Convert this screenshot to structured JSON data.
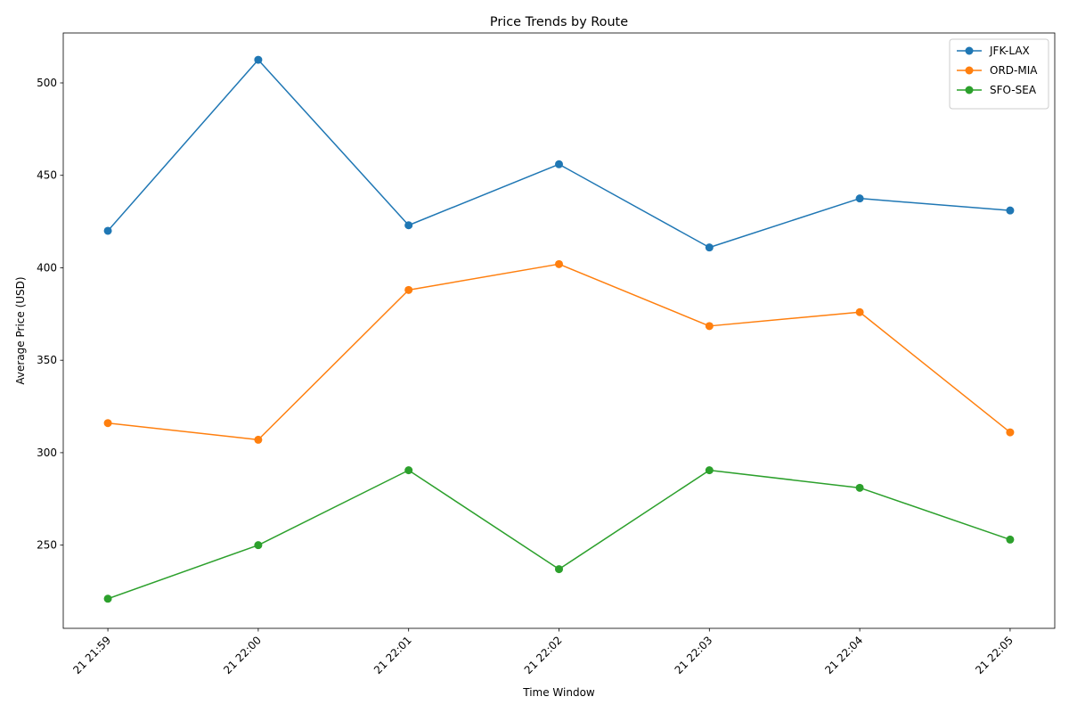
{
  "chart_data": {
    "type": "line",
    "title": "Price Trends by Route",
    "xlabel": "Time Window",
    "ylabel": "Average Price (USD)",
    "categories": [
      "21 21:59",
      "21 22:00",
      "21 22:01",
      "21 22:02",
      "21 22:03",
      "21 22:04",
      "21 22:05"
    ],
    "yticks": [
      250,
      300,
      350,
      400,
      450,
      500
    ],
    "ylim": [
      205,
      527
    ],
    "grid": false,
    "legend_position": "top-right",
    "marker": "circle",
    "series": [
      {
        "name": "JFK-LAX",
        "color": "#1f77b4",
        "values": [
          420,
          512.5,
          423,
          456,
          411,
          437.5,
          431
        ]
      },
      {
        "name": "ORD-MIA",
        "color": "#ff7f0e",
        "values": [
          316,
          307,
          388,
          402,
          368.5,
          376,
          311
        ]
      },
      {
        "name": "SFO-SEA",
        "color": "#2ca02c",
        "values": [
          221,
          250,
          290.5,
          237,
          290.5,
          281,
          253
        ]
      }
    ]
  }
}
